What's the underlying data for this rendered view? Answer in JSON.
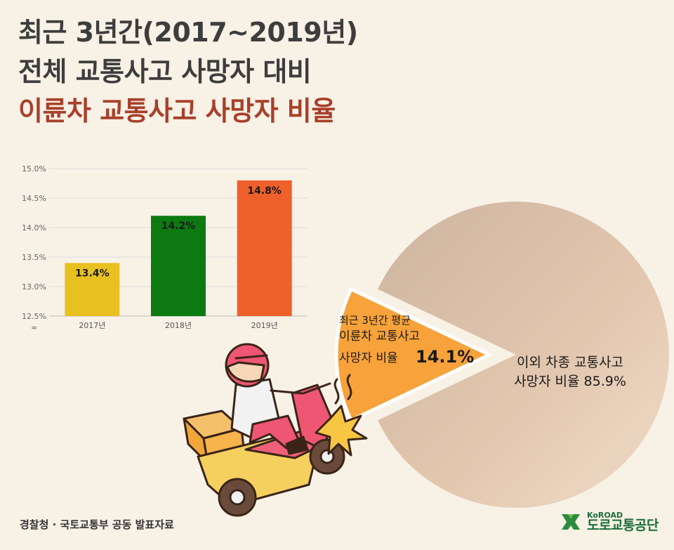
{
  "title": {
    "line1": "최근 3년간(2017~2019년)",
    "line2": "전체 교통사고 사망자 대비",
    "line3": "이륜차 교통사고 사망자 비율"
  },
  "source": "경찰청 · 국토교통부 공동 발표자료",
  "logo": {
    "en": "KoROAD",
    "ko": "도로교통공단"
  },
  "chart_data": [
    {
      "type": "bar",
      "categories": [
        "2017년",
        "2018년",
        "2019년"
      ],
      "values": [
        13.4,
        14.2,
        14.8
      ],
      "value_labels": [
        "13.4%",
        "14.2%",
        "14.8%"
      ],
      "colors": [
        "#e8c020",
        "#0c7a10",
        "#f0602a"
      ],
      "ylim": [
        12.5,
        15.0
      ],
      "yticks": [
        "12.5%",
        "13.0%",
        "13.5%",
        "14.0%",
        "14.5%",
        "15.0%"
      ],
      "axis_break": "≈",
      "grid": true
    },
    {
      "type": "pie",
      "slices": [
        {
          "lines": [
            "최근 3년간 평균",
            "이륜차 교통사고",
            "사망자 비율"
          ],
          "value_label": "14.1%",
          "value": 14.1,
          "color": "#f7a23a"
        },
        {
          "lines": [
            "이외 차종 교통사고",
            "사망자 비율 85.9%"
          ],
          "value": 85.9,
          "color": "#e6c7ad"
        }
      ]
    }
  ]
}
